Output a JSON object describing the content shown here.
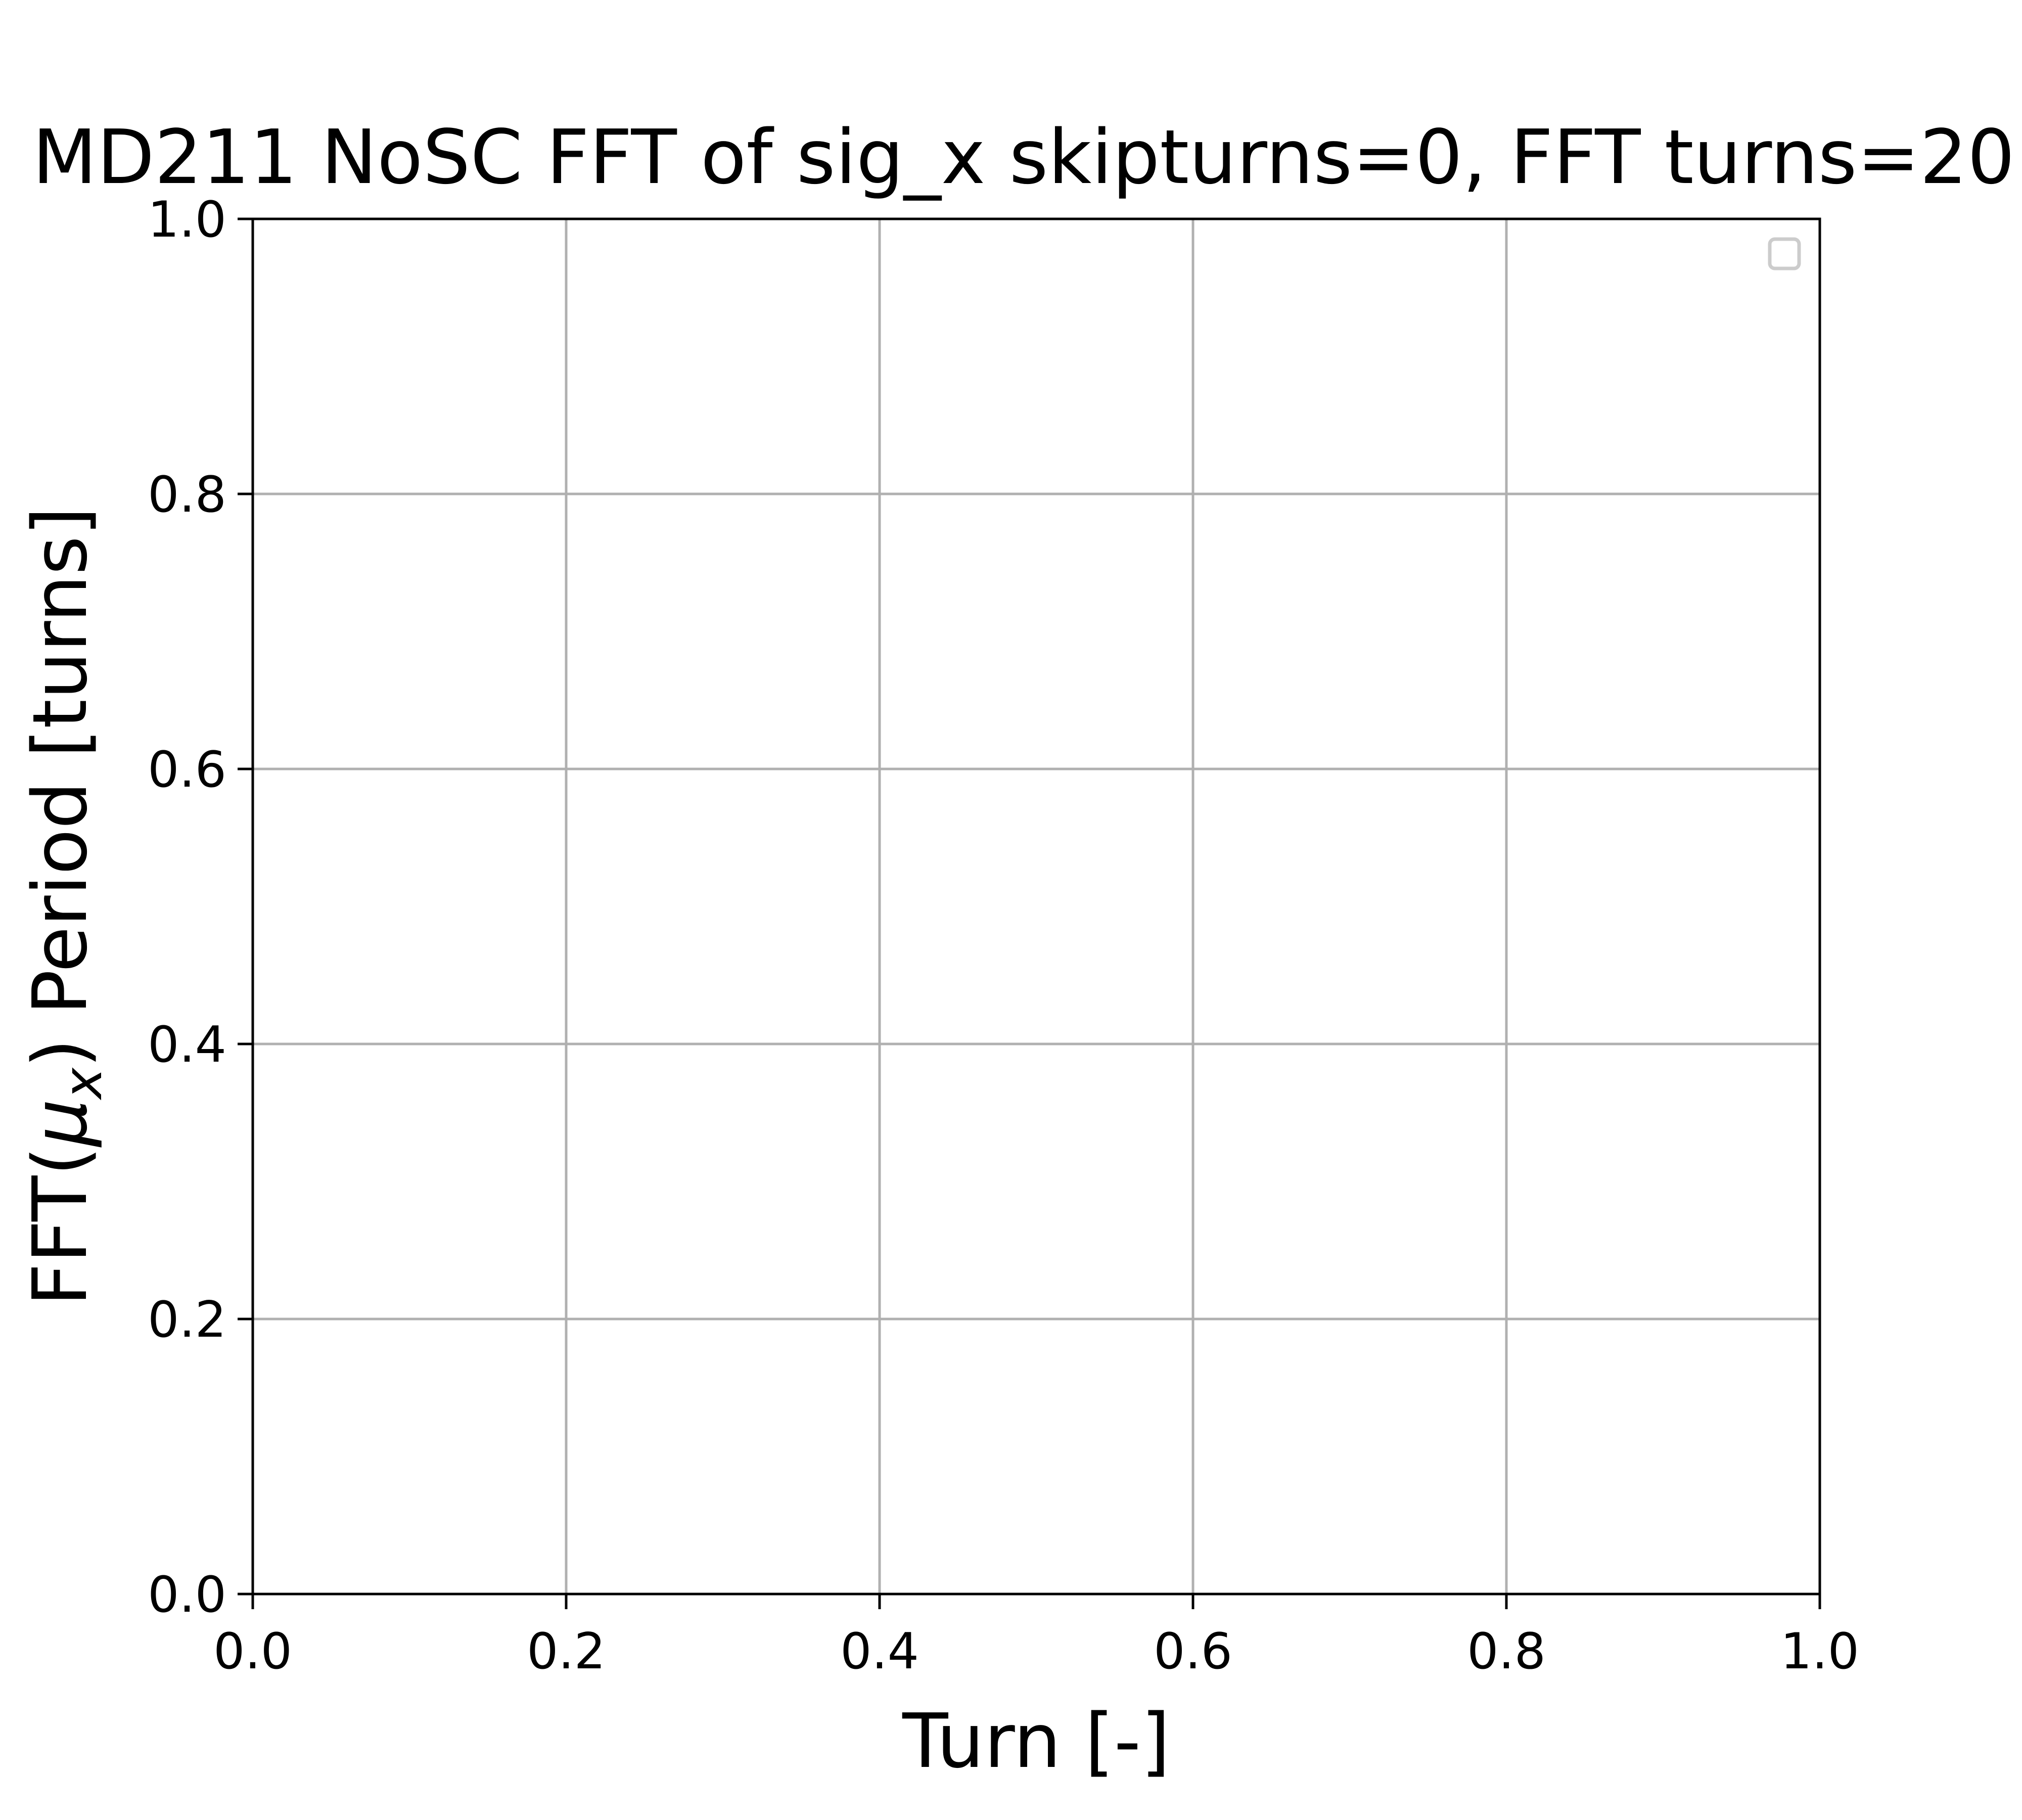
{
  "chart_data": {
    "type": "line",
    "title": "MD211 NoSC FFT of sig_x skipturns=0, FFT turns=20",
    "xlabel": "Turn [-]",
    "ylabel_prefix": "FFT(",
    "ylabel_symbol": "μ",
    "ylabel_subscript": "x",
    "ylabel_suffix": ") Period [turns]",
    "xlim": [
      0.0,
      1.0
    ],
    "ylim": [
      0.0,
      1.0
    ],
    "xticks": [
      "0.0",
      "0.2",
      "0.4",
      "0.6",
      "0.8",
      "1.0"
    ],
    "yticks": [
      "0.0",
      "0.2",
      "0.4",
      "0.6",
      "0.8",
      "1.0"
    ],
    "grid": true,
    "legend": "top-right",
    "series": [],
    "colors": {
      "grid": "#b0b0b0",
      "axis": "#000000",
      "legend_border": "#cccccc"
    }
  }
}
